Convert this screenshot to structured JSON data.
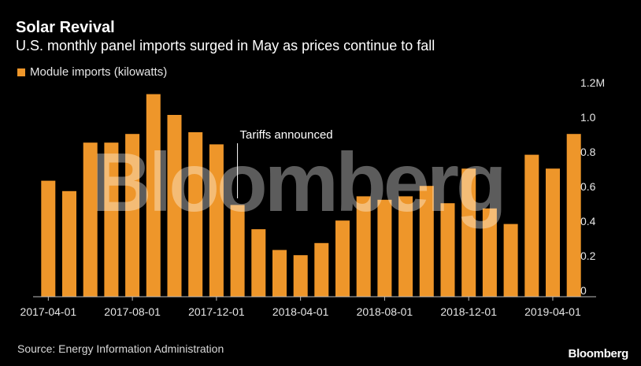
{
  "header": {
    "title": "Solar Revival",
    "subtitle": "U.S. monthly panel imports surged in May as prices continue to fall"
  },
  "colors": {
    "bar": "#ee962a",
    "background": "#000000",
    "axis_text": "#e6e6e6"
  },
  "footer": {
    "source": "Source: Energy Information Administration",
    "brand": "Bloomberg"
  },
  "watermark": "Bloomberg",
  "chart_data": {
    "type": "bar",
    "title": "Solar Revival",
    "subtitle": "U.S. monthly panel imports surged in May as prices continue to fall",
    "legend": [
      "Module imports (kilowatts)"
    ],
    "categories": [
      "2017-04-01",
      "2017-05-01",
      "2017-06-01",
      "2017-07-01",
      "2017-08-01",
      "2017-09-01",
      "2017-10-01",
      "2017-11-01",
      "2017-12-01",
      "2018-01-01",
      "2018-02-01",
      "2018-03-01",
      "2018-04-01",
      "2018-05-01",
      "2018-06-01",
      "2018-07-01",
      "2018-08-01",
      "2018-09-01",
      "2018-10-01",
      "2018-11-01",
      "2018-12-01",
      "2019-01-01",
      "2019-02-01",
      "2019-03-01",
      "2019-04-01",
      "2019-05-01"
    ],
    "series": [
      {
        "name": "Module imports (kilowatts)",
        "values": [
          0.67,
          0.61,
          0.89,
          0.89,
          0.94,
          1.17,
          1.05,
          0.95,
          0.88,
          0.53,
          0.39,
          0.27,
          0.24,
          0.31,
          0.44,
          0.58,
          0.56,
          0.58,
          0.64,
          0.54,
          0.74,
          0.51,
          0.42,
          0.82,
          0.74,
          0.94
        ]
      }
    ],
    "x_tick_labels": [
      "2017-04-01",
      "2017-08-01",
      "2017-12-01",
      "2018-04-01",
      "2018-08-01",
      "2018-12-01",
      "2019-04-01"
    ],
    "y_tick_labels": [
      "0",
      "0.2",
      "0.4",
      "0.6",
      "0.8",
      "1.0",
      "1.2M"
    ],
    "ylim": [
      0,
      1.2
    ],
    "annotations": [
      {
        "text": "Tariffs announced",
        "x": "2018-01-01"
      }
    ],
    "legend_position": "top-left",
    "grid": false
  }
}
